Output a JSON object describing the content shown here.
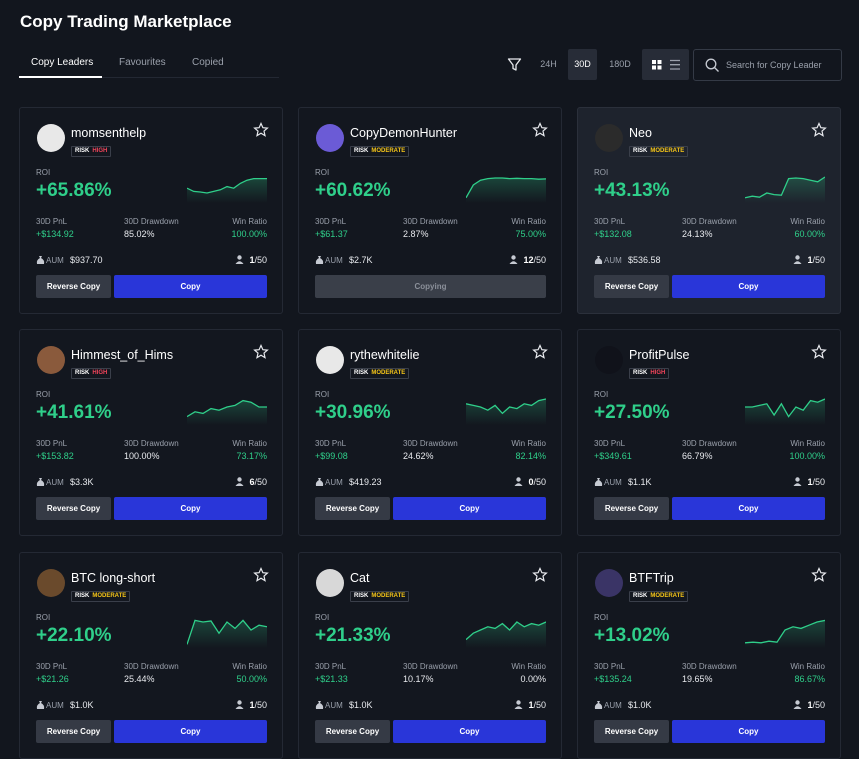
{
  "header": {
    "title": "Copy Trading Marketplace"
  },
  "tabs": [
    "Copy Leaders",
    "Favourites",
    "Copied"
  ],
  "periods": [
    "24H",
    "30D",
    "180D"
  ],
  "search_placeholder": "Search for Copy Leader",
  "labels": {
    "risk": "RISK",
    "roi": "ROI",
    "pnl": "30D PnL",
    "drawdown": "30D Drawdown",
    "win_ratio": "Win Ratio",
    "aum": "AUM",
    "capacity": "/50",
    "reverse_copy": "Reverse Copy",
    "copy": "Copy",
    "copying": "Copying"
  },
  "cards": [
    {
      "name": "momsenthelp",
      "risk": "HIGH",
      "roi": "+65.86%",
      "pnl": "+$134.92",
      "drawdown": "85.02%",
      "win_ratio": "100.00%",
      "aum": "$937.70",
      "copiers": 1,
      "trend": [
        40,
        30,
        28,
        25,
        30,
        35,
        45,
        40,
        55,
        65,
        70,
        70,
        70
      ]
    },
    {
      "name": "CopyDemonHunter",
      "risk": "MODERATE",
      "roi": "+60.62%",
      "pnl": "+$61.37",
      "drawdown": "2.87%",
      "win_ratio": "75.00%",
      "aum": "$2.7K",
      "copiers": 12,
      "copying": true,
      "trend": [
        10,
        50,
        65,
        70,
        72,
        72,
        70,
        71,
        70,
        70,
        68,
        69
      ]
    },
    {
      "name": "Neo",
      "risk": "MODERATE",
      "roi": "+43.13%",
      "pnl": "+$132.08",
      "drawdown": "24.13%",
      "win_ratio": "60.00%",
      "aum": "$536.58",
      "copiers": 1,
      "trend": [
        10,
        15,
        12,
        25,
        20,
        18,
        70,
        72,
        70,
        65,
        60,
        75
      ]
    },
    {
      "name": "Himmest_of_Hims",
      "risk": "HIGH",
      "roi": "+41.61%",
      "pnl": "+$153.82",
      "drawdown": "100.00%",
      "win_ratio": "73.17%",
      "aum": "$3.3K",
      "copiers": 6,
      "trend": [
        20,
        35,
        30,
        45,
        40,
        50,
        55,
        70,
        65,
        50,
        50
      ]
    },
    {
      "name": "rythewhitelie",
      "risk": "MODERATE",
      "roi": "+30.96%",
      "pnl": "+$99.08",
      "drawdown": "24.62%",
      "win_ratio": "82.14%",
      "aum": "$419.23",
      "copiers": 0,
      "trend": [
        60,
        55,
        50,
        40,
        55,
        30,
        50,
        45,
        60,
        55,
        70,
        75
      ]
    },
    {
      "name": "ProfitPulse",
      "risk": "HIGH",
      "roi": "+27.50%",
      "pnl": "+$349.61",
      "drawdown": "66.79%",
      "win_ratio": "100.00%",
      "aum": "$1.1K",
      "copiers": 1,
      "trend": [
        50,
        50,
        55,
        60,
        25,
        60,
        20,
        50,
        40,
        70,
        65,
        75
      ]
    },
    {
      "name": "BTC long-short",
      "risk": "MODERATE",
      "roi": "+22.10%",
      "pnl": "+$21.26",
      "drawdown": "25.44%",
      "win_ratio": "50.00%",
      "aum": "$1.0K",
      "copiers": 1,
      "trend": [
        5,
        80,
        75,
        78,
        40,
        75,
        55,
        80,
        50,
        65,
        60
      ]
    },
    {
      "name": "Cat",
      "risk": "MODERATE",
      "roi": "+21.33%",
      "pnl": "+$21.33",
      "drawdown": "10.17%",
      "win_ratio": "0.00%",
      "aum": "$1.0K",
      "copiers": 1,
      "trend": [
        20,
        40,
        50,
        60,
        55,
        70,
        50,
        75,
        60,
        70,
        65,
        75
      ]
    },
    {
      "name": "BTFTrip",
      "risk": "MODERATE",
      "roi": "+13.02%",
      "pnl": "+$135.24",
      "drawdown": "19.65%",
      "win_ratio": "86.67%",
      "aum": "$1.0K",
      "copiers": 1,
      "trend": [
        10,
        12,
        10,
        15,
        12,
        50,
        60,
        55,
        65,
        75,
        80
      ]
    }
  ]
}
